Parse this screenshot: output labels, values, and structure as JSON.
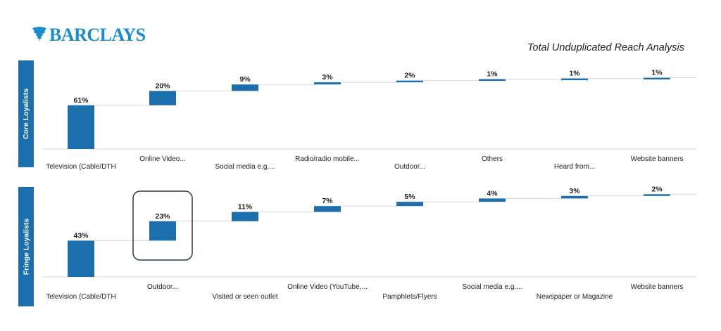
{
  "brand": {
    "name": "BARCLAYS",
    "color": "#1a8cd0"
  },
  "title": "Total Unduplicated Reach Analysis",
  "colors": {
    "bar": "#1b6fad",
    "band": "#1b6fad",
    "connector": "#d9d9d9"
  },
  "chart_data": [
    {
      "type": "bar",
      "subtype": "waterfall",
      "segment": "Core Loyalists",
      "categories": [
        "Television (Cable/DTH",
        "Online Video...",
        "Social media e.g....",
        "Radio/radio mobile...",
        "Outdoor...",
        "Others",
        "Heard from...",
        "Website banners"
      ],
      "values": [
        61,
        20,
        9,
        3,
        2,
        1,
        1,
        1
      ],
      "labels": [
        "61%",
        "20%",
        "9%",
        "3%",
        "2%",
        "1%",
        "1%",
        "1%"
      ],
      "ylim": [
        0,
        100
      ]
    },
    {
      "type": "bar",
      "subtype": "waterfall",
      "segment": "Fringe Loyalists",
      "categories": [
        "Television (Cable/DTH",
        "Outdoor...",
        "Visited or seen outlet",
        "Online Video (YouTube,...",
        "Pamphlets/Flyers",
        "Social media e.g....",
        "Newspaper or Magazine",
        "Website banners"
      ],
      "values": [
        43,
        23,
        11,
        7,
        5,
        4,
        3,
        2
      ],
      "labels": [
        "43%",
        "23%",
        "11%",
        "7%",
        "5%",
        "4%",
        "3%",
        "2%"
      ],
      "ylim": [
        0,
        100
      ],
      "highlighted_category": "Outdoor..."
    }
  ]
}
